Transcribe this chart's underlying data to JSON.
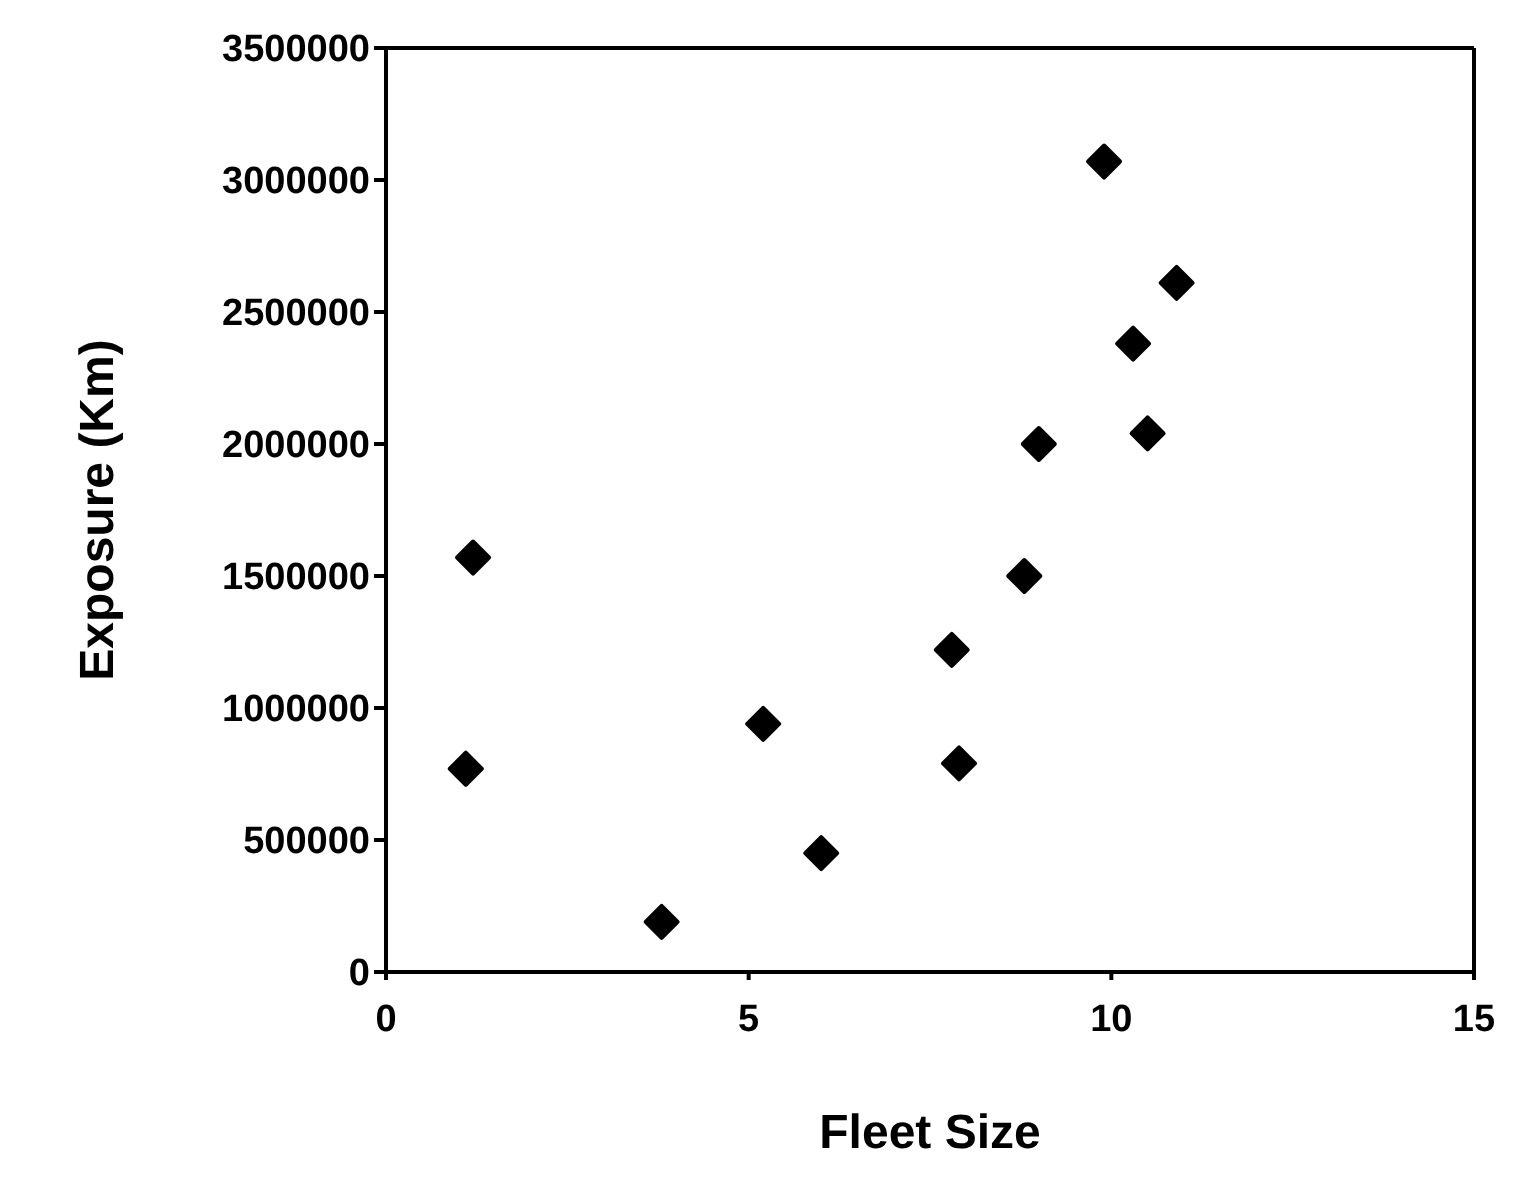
{
  "chart_data": {
    "type": "scatter",
    "xlabel": "Fleet Size",
    "ylabel": "Exposure (Km)",
    "x": [
      1.1,
      1.2,
      3.8,
      5.2,
      6.0,
      7.8,
      7.9,
      8.8,
      9.0,
      9.9,
      10.3,
      10.5,
      10.9
    ],
    "values": [
      770000,
      1570000,
      190000,
      940000,
      450000,
      1220000,
      790000,
      1500000,
      2000000,
      3070000,
      2380000,
      2040000,
      2610000
    ],
    "color": "#000000",
    "marker": "diamond",
    "xlim": [
      0,
      15
    ],
    "xticks": [
      0,
      5,
      10,
      15
    ],
    "ylim": [
      0,
      3500000
    ],
    "yticks": [
      0,
      500000,
      1000000,
      1500000,
      2000000,
      2500000,
      3000000,
      3500000
    ],
    "grid": false
  }
}
